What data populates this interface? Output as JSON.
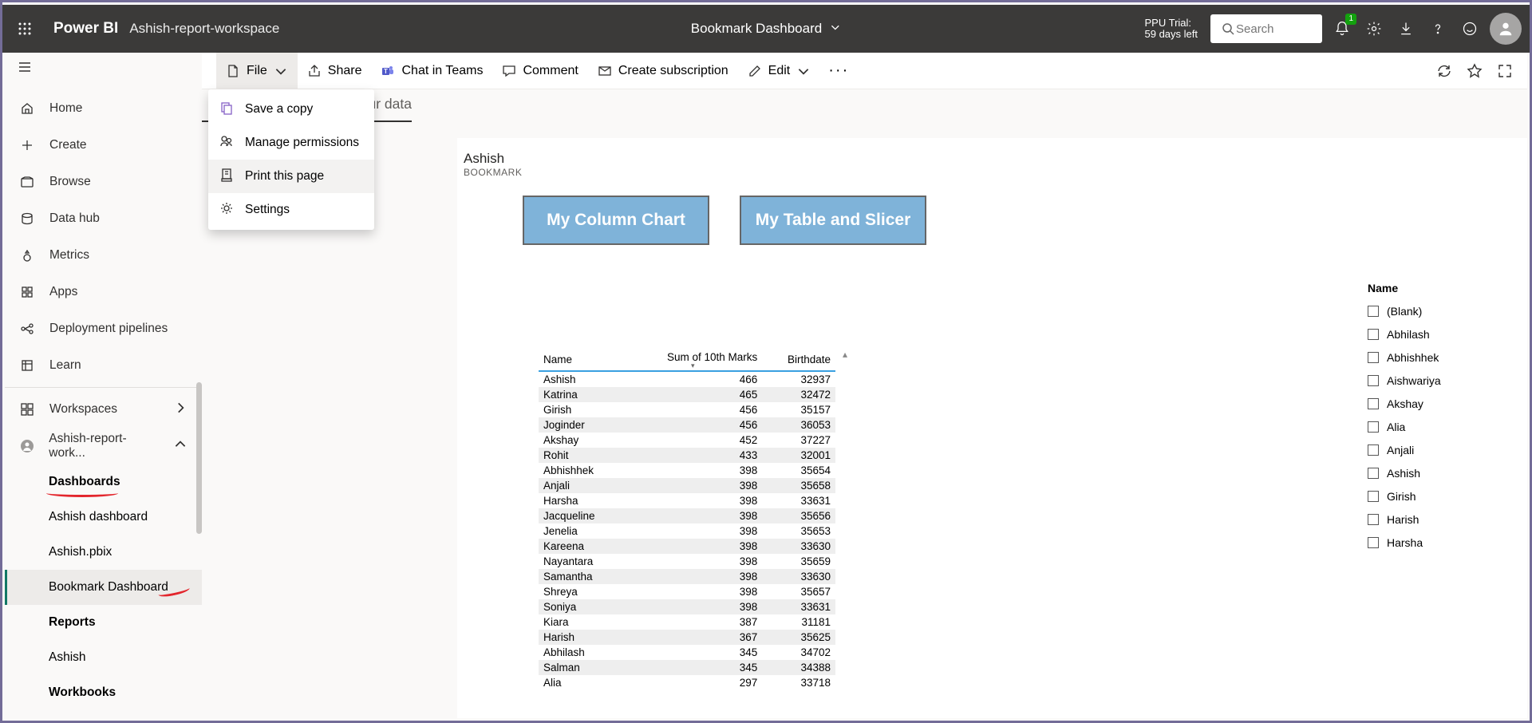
{
  "suitebar": {
    "brand": "Power BI",
    "workspace": "Ashish-report-workspace",
    "center_title": "Bookmark Dashboard",
    "trial_line1": "PPU Trial:",
    "trial_line2": "59 days left",
    "search_placeholder": "Search",
    "notif_badge": "1"
  },
  "nav": {
    "items": [
      {
        "label": "Home"
      },
      {
        "label": "Create"
      },
      {
        "label": "Browse"
      },
      {
        "label": "Data hub"
      },
      {
        "label": "Metrics"
      },
      {
        "label": "Apps"
      },
      {
        "label": "Deployment pipelines"
      },
      {
        "label": "Learn"
      }
    ],
    "workspaces_label": "Workspaces",
    "current_ws": "Ashish-report-work...",
    "subs": [
      {
        "label": "Dashboards",
        "bold": true
      },
      {
        "label": "Ashish dashboard"
      },
      {
        "label": "Ashish.pbix"
      },
      {
        "label": "Bookmark Dashboard",
        "active": true
      },
      {
        "label": "Reports",
        "bold": true
      },
      {
        "label": "Ashish"
      },
      {
        "label": "Workbooks",
        "bold": true
      }
    ]
  },
  "cmdbar": {
    "file": "File",
    "share": "Share",
    "chat": "Chat in Teams",
    "comment": "Comment",
    "sub": "Create subscription",
    "edit": "Edit"
  },
  "crumb_tail": "your data",
  "dropdown": {
    "items": [
      {
        "label": "Save a copy"
      },
      {
        "label": "Manage permissions"
      },
      {
        "label": "Print this page",
        "hov": true
      },
      {
        "label": "Settings"
      }
    ]
  },
  "report": {
    "title": "Ashish",
    "subtitle": "BOOKMARK",
    "btn1": "My Column Chart",
    "btn2": "My Table and Slicer"
  },
  "table": {
    "columns": [
      "Name",
      "Sum of 10th Marks",
      "Birthdate"
    ],
    "rows": [
      [
        "Ashish",
        "466",
        "32937"
      ],
      [
        "Katrina",
        "465",
        "32472"
      ],
      [
        "Girish",
        "456",
        "35157"
      ],
      [
        "Joginder",
        "456",
        "36053"
      ],
      [
        "Akshay",
        "452",
        "37227"
      ],
      [
        "Rohit",
        "433",
        "32001"
      ],
      [
        "Abhishhek",
        "398",
        "35654"
      ],
      [
        "Anjali",
        "398",
        "35658"
      ],
      [
        "Harsha",
        "398",
        "33631"
      ],
      [
        "Jacqueline",
        "398",
        "35656"
      ],
      [
        "Jenelia",
        "398",
        "35653"
      ],
      [
        "Kareena",
        "398",
        "33630"
      ],
      [
        "Nayantara",
        "398",
        "35659"
      ],
      [
        "Samantha",
        "398",
        "33630"
      ],
      [
        "Shreya",
        "398",
        "35657"
      ],
      [
        "Soniya",
        "398",
        "33631"
      ],
      [
        "Kiara",
        "387",
        "31181"
      ],
      [
        "Harish",
        "367",
        "35625"
      ],
      [
        "Abhilash",
        "345",
        "34702"
      ],
      [
        "Salman",
        "345",
        "34388"
      ],
      [
        "Alia",
        "297",
        "33718"
      ]
    ]
  },
  "slicer": {
    "title": "Name",
    "items": [
      "(Blank)",
      "Abhilash",
      "Abhishhek",
      "Aishwariya",
      "Akshay",
      "Alia",
      "Anjali",
      "Ashish",
      "Girish",
      "Harish",
      "Harsha"
    ]
  },
  "colors": {
    "suitebar": "#3b3a39",
    "accent": "#117865",
    "bookmark_btn": "#7fb3d9",
    "annotation": "#e3262d"
  }
}
